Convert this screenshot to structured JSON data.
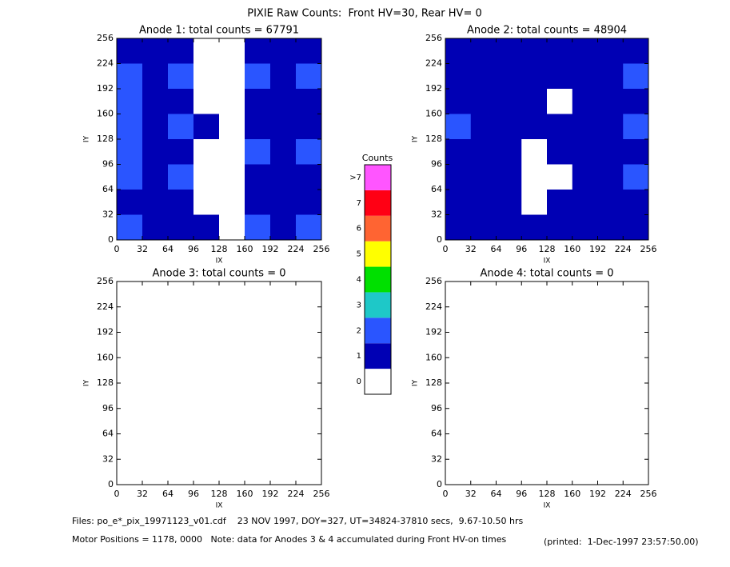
{
  "title": "PIXIE Raw Counts:  Front HV=30, Rear HV= 0",
  "colorbar": {
    "title": "Counts",
    "levels": [
      0,
      1,
      2,
      3,
      4,
      5,
      6,
      7,
      {
        "value": 8,
        "label": ">7"
      }
    ],
    "colors": [
      "#ffffff",
      "#0000b4",
      "#2a55ff",
      "#1ec8c8",
      "#00e000",
      "#ffff00",
      "#ff6432",
      "#ff0014",
      "#ff55ff"
    ]
  },
  "footer": {
    "files": "Files: po_e*_pix_19971123_v01.cdf    23 NOV 1997, DOY=327, UT=34824-37810 secs,  9.67-10.50 hrs",
    "motor": "Motor Positions = 1178, 0000   Note: data for Anodes 3 & 4 accumulated during Front HV-on times",
    "printed": "(printed:  1-Dec-1997 23:57:50.00)"
  },
  "chart_data": [
    {
      "type": "heatmap",
      "title": "Anode 1: total counts = 67791",
      "x_label": "IX",
      "y_label": "IY",
      "xlim": [
        0,
        256
      ],
      "ylim": [
        0,
        256
      ],
      "xticks": [
        0,
        32,
        64,
        96,
        128,
        160,
        192,
        224,
        256
      ],
      "yticks": [
        0,
        32,
        64,
        96,
        128,
        160,
        192,
        224,
        256
      ],
      "values": [
        [
          1.2,
          0.6,
          0.9,
          0.4,
          0.3,
          0.8,
          0.5,
          1.3
        ],
        [
          2.0,
          0.8,
          1.5,
          0.4,
          0.3,
          1.6,
          0.6,
          1.8
        ],
        [
          1.6,
          0.7,
          0.8,
          0.4,
          0.3,
          0.7,
          0.5,
          1.2
        ],
        [
          2.4,
          0.8,
          2.2,
          0.5,
          0.3,
          0.8,
          0.6,
          1.3
        ],
        [
          1.8,
          0.7,
          1.0,
          0.4,
          0.3,
          1.9,
          0.7,
          2.0
        ],
        [
          1.5,
          0.7,
          1.8,
          0.4,
          0.3,
          0.9,
          0.6,
          1.4
        ],
        [
          1.3,
          0.6,
          0.9,
          0.4,
          0.3,
          1.0,
          0.5,
          1.2
        ],
        [
          2.0,
          0.7,
          1.3,
          0.5,
          0.3,
          1.5,
          0.6,
          1.7
        ]
      ]
    },
    {
      "type": "heatmap",
      "title": "Anode 2: total counts = 48904",
      "x_label": "IX",
      "y_label": "IY",
      "xlim": [
        0,
        256
      ],
      "ylim": [
        0,
        256
      ],
      "xticks": [
        0,
        32,
        64,
        96,
        128,
        160,
        192,
        224,
        256
      ],
      "yticks": [
        0,
        32,
        64,
        96,
        128,
        160,
        192,
        224,
        256
      ],
      "values": [
        [
          1.2,
          0.8,
          0.6,
          0.5,
          0.5,
          0.6,
          0.7,
          1.4
        ],
        [
          1.4,
          0.7,
          0.6,
          0.5,
          0.5,
          1.0,
          0.8,
          1.5
        ],
        [
          1.2,
          0.7,
          1.0,
          0.5,
          0.4,
          0.6,
          0.7,
          1.3
        ],
        [
          1.5,
          0.7,
          0.8,
          0.5,
          0.6,
          1.0,
          0.8,
          1.6
        ],
        [
          1.3,
          0.6,
          1.1,
          0.4,
          0.5,
          0.6,
          0.7,
          1.4
        ],
        [
          1.4,
          0.6,
          0.8,
          0.4,
          0.4,
          0.7,
          0.7,
          1.5
        ],
        [
          1.2,
          0.6,
          0.6,
          0.4,
          0.6,
          1.0,
          0.7,
          1.3
        ],
        [
          1.3,
          0.7,
          0.6,
          0.5,
          0.5,
          0.6,
          0.8,
          1.4
        ]
      ]
    },
    {
      "type": "heatmap",
      "title": "Anode 3: total counts = 0",
      "x_label": "IX",
      "y_label": "IY",
      "xlim": [
        0,
        256
      ],
      "ylim": [
        0,
        256
      ],
      "xticks": [
        0,
        32,
        64,
        96,
        128,
        160,
        192,
        224,
        256
      ],
      "yticks": [
        0,
        32,
        64,
        96,
        128,
        160,
        192,
        224,
        256
      ]
    },
    {
      "type": "heatmap",
      "title": "Anode 4: total counts = 0",
      "x_label": "IX",
      "y_label": "IY",
      "xlim": [
        0,
        256
      ],
      "ylim": [
        0,
        256
      ],
      "xticks": [
        0,
        32,
        64,
        96,
        128,
        160,
        192,
        224,
        256
      ],
      "yticks": [
        0,
        32,
        64,
        96,
        128,
        160,
        192,
        224,
        256
      ]
    }
  ]
}
